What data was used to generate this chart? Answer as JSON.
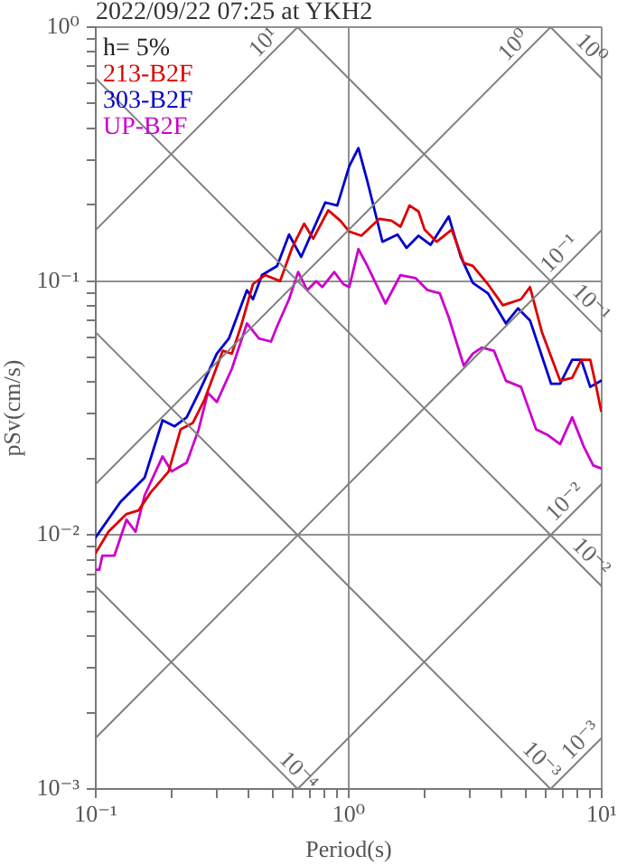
{
  "chart_data": {
    "type": "line",
    "title": "2022/09/22 07:25 at YKH2",
    "xlabel": "Period(s)",
    "ylabel": "pSv(cm/s)",
    "log": "xy",
    "grid": true,
    "legend": "top left",
    "xlim": [
      0.1,
      10
    ],
    "ylim": [
      0.001,
      1
    ],
    "xticks": [
      {
        "value": 0.1,
        "label": "10⁻¹"
      },
      {
        "value": 0.2,
        "label": null
      },
      {
        "value": 0.3,
        "label": null
      },
      {
        "value": 0.4,
        "label": null
      },
      {
        "value": 0.5,
        "label": null
      },
      {
        "value": 0.6,
        "label": null
      },
      {
        "value": 0.7,
        "label": null
      },
      {
        "value": 0.8,
        "label": null
      },
      {
        "value": 0.9,
        "label": null
      },
      {
        "value": 1,
        "label": "10⁰"
      },
      {
        "value": 2,
        "label": null
      },
      {
        "value": 3,
        "label": null
      },
      {
        "value": 4,
        "label": null
      },
      {
        "value": 5,
        "label": null
      },
      {
        "value": 6,
        "label": null
      },
      {
        "value": 7,
        "label": null
      },
      {
        "value": 8,
        "label": null
      },
      {
        "value": 9,
        "label": null
      },
      {
        "value": 10,
        "label": "10¹"
      }
    ],
    "yticks": [
      {
        "value": 0.001,
        "label": "10⁻³"
      },
      {
        "value": 0.002,
        "label": null
      },
      {
        "value": 0.003,
        "label": null
      },
      {
        "value": 0.004,
        "label": null
      },
      {
        "value": 0.005,
        "label": null
      },
      {
        "value": 0.006,
        "label": null
      },
      {
        "value": 0.007,
        "label": null
      },
      {
        "value": 0.008,
        "label": null
      },
      {
        "value": 0.009,
        "label": null
      },
      {
        "value": 0.01,
        "label": "10⁻²"
      },
      {
        "value": 0.02,
        "label": null
      },
      {
        "value": 0.03,
        "label": null
      },
      {
        "value": 0.04,
        "label": null
      },
      {
        "value": 0.05,
        "label": null
      },
      {
        "value": 0.06,
        "label": null
      },
      {
        "value": 0.07,
        "label": null
      },
      {
        "value": 0.08,
        "label": null
      },
      {
        "value": 0.09,
        "label": null
      },
      {
        "value": 0.1,
        "label": "10⁻¹"
      },
      {
        "value": 0.2,
        "label": null
      },
      {
        "value": 0.3,
        "label": null
      },
      {
        "value": 0.4,
        "label": null
      },
      {
        "value": 0.5,
        "label": null
      },
      {
        "value": 0.6,
        "label": null
      },
      {
        "value": 0.7,
        "label": null
      },
      {
        "value": 0.8,
        "label": null
      },
      {
        "value": 0.9,
        "label": null
      },
      {
        "value": 1,
        "label": "10⁰"
      }
    ],
    "series": [
      {
        "color": "#808080",
        "x": [
          0.1,
          0.628
        ],
        "values": [
          0.159,
          1
        ]
      },
      {
        "color": "#808080",
        "x": [
          0.1,
          6.28
        ],
        "values": [
          0.0159,
          1
        ]
      },
      {
        "color": "#808080",
        "x": [
          0.1,
          10
        ],
        "values": [
          0.00159,
          0.159
        ]
      },
      {
        "color": "#808080",
        "x": [
          0.628,
          10
        ],
        "values": [
          0.001,
          0.0159
        ]
      },
      {
        "color": "#808080",
        "x": [
          6.28,
          10
        ],
        "values": [
          0.001,
          0.00159
        ]
      },
      {
        "color": "#808080",
        "x": [
          6.28,
          10
        ],
        "values": [
          1,
          0.628
        ]
      },
      {
        "color": "#808080",
        "x": [
          0.628,
          10
        ],
        "values": [
          1,
          0.0628
        ]
      },
      {
        "color": "#808080",
        "x": [
          0.1,
          10
        ],
        "values": [
          0.628,
          0.00628
        ]
      },
      {
        "color": "#808080",
        "x": [
          0.1,
          6.28
        ],
        "values": [
          0.0628,
          0.001
        ]
      },
      {
        "color": "#808080",
        "x": [
          0.1,
          0.628
        ],
        "values": [
          0.00628,
          0.001
        ]
      },
      {
        "name": "213-B2F",
        "color": "#dd0000",
        "x": [
          0.1,
          0.1122,
          0.1323,
          0.1476,
          0.1647,
          0.1941,
          0.2166,
          0.2417,
          0.2697,
          0.3179,
          0.3452,
          0.3748,
          0.4182,
          0.4667,
          0.5353,
          0.5971,
          0.6665,
          0.7235,
          0.8299,
          0.926,
          1.005,
          1.122,
          1.322,
          1.476,
          1.602,
          1.739,
          1.888,
          1.995,
          2.227,
          2.554,
          2.85,
          3.094,
          3.548,
          4.07,
          4.797,
          5.208,
          5.811,
          6.849,
          7.643,
          8.299,
          9.01,
          9.517,
          9.95
        ],
        "values": [
          0.0085,
          0.0103,
          0.0121,
          0.0125,
          0.0147,
          0.0178,
          0.0261,
          0.0276,
          0.0343,
          0.0532,
          0.0518,
          0.0663,
          0.0973,
          0.1056,
          0.1,
          0.1352,
          0.1683,
          0.1468,
          0.19,
          0.173,
          0.1567,
          0.1509,
          0.1759,
          0.173,
          0.1638,
          0.1984,
          0.1879,
          0.1594,
          0.1429,
          0.1594,
          0.1179,
          0.1147,
          0.0973,
          0.0803,
          0.0848,
          0.0947,
          0.0627,
          0.0405,
          0.0416,
          0.049,
          0.049,
          0.0383,
          0.0308
        ]
      },
      {
        "name": "303-B2F",
        "color": "#0000cc",
        "x": [
          0.1,
          0.1252,
          0.1559,
          0.1837,
          0.205,
          0.2289,
          0.2553,
          0.301,
          0.3358,
          0.3959,
          0.4182,
          0.454,
          0.5208,
          0.5808,
          0.6484,
          0.7235,
          0.8074,
          0.901,
          1.005,
          1.092,
          1.185,
          1.359,
          1.559,
          1.692,
          1.888,
          2.108,
          2.485,
          2.773,
          3.094,
          3.548,
          4.182,
          4.667,
          5.208,
          6.31,
          6.849,
          7.643,
          8.299,
          9.01,
          9.95
        ],
        "values": [
          0.0098,
          0.0135,
          0.0168,
          0.0283,
          0.0268,
          0.0291,
          0.0363,
          0.0518,
          0.0594,
          0.0921,
          0.0848,
          0.1056,
          0.1147,
          0.1525,
          0.1245,
          0.1594,
          0.204,
          0.1984,
          0.2834,
          0.334,
          0.2471,
          0.1429,
          0.1525,
          0.1352,
          0.1509,
          0.139,
          0.1798,
          0.1245,
          0.0984,
          0.0896,
          0.0681,
          0.0781,
          0.07,
          0.0394,
          0.0394,
          0.049,
          0.049,
          0.0383,
          0.0405
        ]
      },
      {
        "name": "UP-B2F",
        "color": "#cc00cc",
        "x": [
          0.1,
          0.1033,
          0.1062,
          0.1185,
          0.1323,
          0.1436,
          0.1559,
          0.1837,
          0.1995,
          0.2289,
          0.2553,
          0.2773,
          0.301,
          0.3452,
          0.3959,
          0.4417,
          0.493,
          0.5208,
          0.5808,
          0.631,
          0.685,
          0.7437,
          0.7855,
          0.8766,
          0.952,
          1.005,
          1.092,
          1.185,
          1.397,
          1.602,
          1.837,
          2.05,
          2.289,
          2.485,
          2.85,
          3.094,
          3.358,
          3.749,
          4.182,
          4.797,
          5.501,
          6.139,
          6.849,
          7.643,
          8.53,
          9.26,
          9.95
        ],
        "values": [
          0.0073,
          0.0073,
          0.0083,
          0.0083,
          0.0115,
          0.0103,
          0.0143,
          0.0204,
          0.0178,
          0.0193,
          0.0261,
          0.0363,
          0.0334,
          0.0452,
          0.0681,
          0.0594,
          0.0578,
          0.0663,
          0.0848,
          0.1086,
          0.0921,
          0.1,
          0.0947,
          0.1086,
          0.0973,
          0.0947,
          0.1337,
          0.1147,
          0.0816,
          0.1056,
          0.1028,
          0.0921,
          0.0896,
          0.072,
          0.0464,
          0.0518,
          0.0547,
          0.0532,
          0.0405,
          0.0383,
          0.0261,
          0.0247,
          0.0228,
          0.0291,
          0.0221,
          0.0188,
          0.0183
        ]
      }
    ],
    "annotations": [
      "h= 5%",
      {
        "text": "10¹",
        "x": 0.503,
        "y": 0.8
      },
      {
        "text": "10⁰",
        "x": 4.9,
        "y": 0.78
      },
      {
        "text": "10⁻¹",
        "x": 7.43,
        "y": 0.118
      },
      {
        "text": "10⁻²",
        "x": 7.81,
        "y": 0.0124
      },
      {
        "text": "10⁻³",
        "x": 9.0,
        "y": 0.00143
      },
      {
        "text": "10⁰",
        "x": 8.34,
        "y": 0.753
      },
      {
        "text": "10⁻¹",
        "x": 8.34,
        "y": 0.0753
      },
      {
        "text": "10⁻²",
        "x": 8.34,
        "y": 0.00753
      },
      {
        "text": "10⁻³",
        "x": 5.3,
        "y": 0.00119
      },
      {
        "text": "10⁻⁴",
        "x": 0.581,
        "y": 0.00108
      }
    ]
  }
}
